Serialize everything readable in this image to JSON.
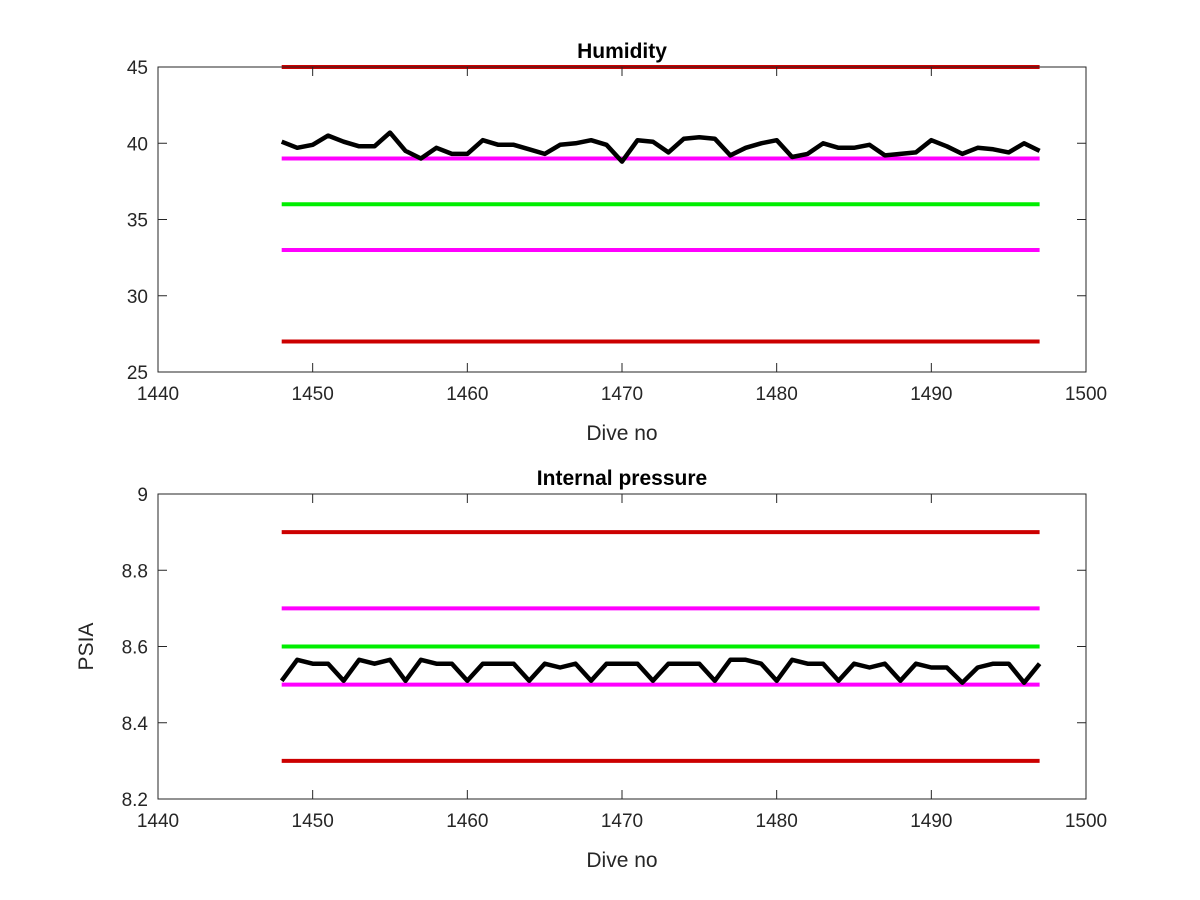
{
  "chart_data": [
    {
      "type": "line",
      "title": "Humidity",
      "xlabel": "Dive no",
      "ylabel": "",
      "xlim": [
        1440,
        1500
      ],
      "ylim": [
        25,
        45
      ],
      "xticks": [
        1440,
        1450,
        1460,
        1470,
        1480,
        1490,
        1500
      ],
      "yticks": [
        25,
        30,
        35,
        40,
        45
      ],
      "grid": false,
      "series": [
        {
          "color": "#cc0000",
          "x": [
            1448,
            1497
          ],
          "y": [
            45,
            45
          ]
        },
        {
          "color": "#ff00ff",
          "x": [
            1448,
            1497
          ],
          "y": [
            39,
            39
          ]
        },
        {
          "color": "#00ee00",
          "x": [
            1448,
            1497
          ],
          "y": [
            36,
            36
          ]
        },
        {
          "color": "#ff00ff",
          "x": [
            1448,
            1497
          ],
          "y": [
            33,
            33
          ]
        },
        {
          "color": "#cc0000",
          "x": [
            1448,
            1497
          ],
          "y": [
            27,
            27
          ]
        },
        {
          "color": "#000000",
          "x": [
            1448,
            1449,
            1450,
            1451,
            1452,
            1453,
            1454,
            1455,
            1456,
            1457,
            1458,
            1459,
            1460,
            1461,
            1462,
            1463,
            1464,
            1465,
            1466,
            1467,
            1468,
            1469,
            1470,
            1471,
            1472,
            1473,
            1474,
            1475,
            1476,
            1477,
            1478,
            1479,
            1480,
            1481,
            1482,
            1483,
            1484,
            1485,
            1486,
            1487,
            1488,
            1489,
            1490,
            1491,
            1492,
            1493,
            1494,
            1495,
            1496,
            1497
          ],
          "y": [
            40.1,
            39.7,
            39.9,
            40.5,
            40.1,
            39.8,
            39.8,
            40.7,
            39.5,
            39.0,
            39.7,
            39.3,
            39.3,
            40.2,
            39.9,
            39.9,
            39.6,
            39.3,
            39.9,
            40.0,
            40.2,
            39.9,
            38.8,
            40.2,
            40.1,
            39.4,
            40.3,
            40.4,
            40.3,
            39.2,
            39.7,
            40.0,
            40.2,
            39.1,
            39.3,
            40.0,
            39.7,
            39.7,
            39.9,
            39.2,
            39.3,
            39.4,
            40.2,
            39.8,
            39.3,
            39.7,
            39.6,
            39.4,
            40.0,
            39.5
          ]
        }
      ]
    },
    {
      "type": "line",
      "title": "Internal pressure",
      "xlabel": "Dive no",
      "ylabel": "PSIA",
      "xlim": [
        1440,
        1500
      ],
      "ylim": [
        8.2,
        9
      ],
      "xticks": [
        1440,
        1450,
        1460,
        1470,
        1480,
        1490,
        1500
      ],
      "yticks": [
        8.2,
        8.4,
        8.6,
        8.8,
        9
      ],
      "grid": false,
      "series": [
        {
          "color": "#cc0000",
          "x": [
            1448,
            1497
          ],
          "y": [
            8.9,
            8.9
          ]
        },
        {
          "color": "#ff00ff",
          "x": [
            1448,
            1497
          ],
          "y": [
            8.7,
            8.7
          ]
        },
        {
          "color": "#00ee00",
          "x": [
            1448,
            1497
          ],
          "y": [
            8.6,
            8.6
          ]
        },
        {
          "color": "#ff00ff",
          "x": [
            1448,
            1497
          ],
          "y": [
            8.5,
            8.5
          ]
        },
        {
          "color": "#cc0000",
          "x": [
            1448,
            1497
          ],
          "y": [
            8.3,
            8.3
          ]
        },
        {
          "color": "#000000",
          "x": [
            1448,
            1449,
            1450,
            1451,
            1452,
            1453,
            1454,
            1455,
            1456,
            1457,
            1458,
            1459,
            1460,
            1461,
            1462,
            1463,
            1464,
            1465,
            1466,
            1467,
            1468,
            1469,
            1470,
            1471,
            1472,
            1473,
            1474,
            1475,
            1476,
            1477,
            1478,
            1479,
            1480,
            1481,
            1482,
            1483,
            1484,
            1485,
            1486,
            1487,
            1488,
            1489,
            1490,
            1491,
            1492,
            1493,
            1494,
            1495,
            1496,
            1497
          ],
          "y": [
            8.51,
            8.565,
            8.555,
            8.555,
            8.51,
            8.565,
            8.555,
            8.565,
            8.51,
            8.565,
            8.555,
            8.555,
            8.51,
            8.555,
            8.555,
            8.555,
            8.51,
            8.555,
            8.545,
            8.555,
            8.51,
            8.555,
            8.555,
            8.555,
            8.51,
            8.555,
            8.555,
            8.555,
            8.51,
            8.565,
            8.565,
            8.555,
            8.51,
            8.565,
            8.555,
            8.555,
            8.51,
            8.555,
            8.545,
            8.555,
            8.51,
            8.555,
            8.545,
            8.545,
            8.505,
            8.545,
            8.555,
            8.555,
            8.505,
            8.555
          ]
        }
      ]
    }
  ]
}
